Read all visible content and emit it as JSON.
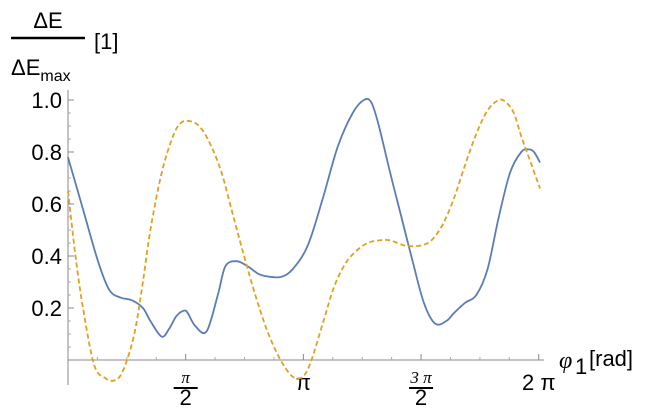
{
  "chart_data": {
    "type": "line",
    "title": "",
    "xlabel": {
      "symbol": "φ",
      "subscript": "1",
      "unit": "[rad]"
    },
    "ylabel": {
      "numerator": "ΔE",
      "denominator": "ΔE",
      "denominator_subscript": "max",
      "unit": "[1]"
    },
    "xlim": [
      0,
      6.3
    ],
    "ylim": [
      0,
      1.05
    ],
    "y_ticks": [
      {
        "value": 0.2,
        "label": "0.2"
      },
      {
        "value": 0.4,
        "label": "0.4"
      },
      {
        "value": 0.6,
        "label": "0.6"
      },
      {
        "value": 0.8,
        "label": "0.8"
      },
      {
        "value": 1.0,
        "label": "1.0"
      }
    ],
    "x_ticks": [
      {
        "value": 1.5708,
        "num": "π",
        "den": "2"
      },
      {
        "value": 3.1416,
        "label": "π"
      },
      {
        "value": 4.7124,
        "num": "3 π",
        "den": "2"
      },
      {
        "value": 6.2832,
        "label": "2 π"
      }
    ],
    "grid": false,
    "series": [
      {
        "color": "#5b7db5",
        "dash": "solid",
        "x": [
          0.0,
          0.2,
          0.4,
          0.55,
          0.7,
          0.85,
          1.0,
          1.1,
          1.25,
          1.35,
          1.45,
          1.55,
          1.6,
          1.7,
          1.85,
          2.0,
          2.1,
          2.25,
          2.4,
          2.55,
          2.7,
          2.85,
          3.0,
          3.2,
          3.4,
          3.6,
          3.8,
          3.95,
          4.05,
          4.15,
          4.3,
          4.45,
          4.6,
          4.75,
          4.9,
          5.05,
          5.15,
          5.3,
          5.45,
          5.6,
          5.75,
          5.9,
          6.05,
          6.15,
          6.22,
          6.3
        ],
        "y": [
          0.78,
          0.58,
          0.38,
          0.27,
          0.24,
          0.23,
          0.2,
          0.15,
          0.09,
          0.12,
          0.17,
          0.19,
          0.18,
          0.13,
          0.11,
          0.25,
          0.36,
          0.38,
          0.36,
          0.33,
          0.32,
          0.32,
          0.35,
          0.44,
          0.62,
          0.82,
          0.95,
          1.0,
          0.99,
          0.9,
          0.72,
          0.55,
          0.38,
          0.22,
          0.14,
          0.15,
          0.18,
          0.22,
          0.25,
          0.35,
          0.55,
          0.72,
          0.8,
          0.81,
          0.8,
          0.76
        ]
      },
      {
        "color": "#e0a020",
        "dash": "dashed",
        "x": [
          0.0,
          0.1,
          0.2,
          0.35,
          0.5,
          0.6,
          0.7,
          0.8,
          0.9,
          1.0,
          1.1,
          1.25,
          1.4,
          1.5,
          1.6,
          1.75,
          1.9,
          2.05,
          2.2,
          2.35,
          2.5,
          2.65,
          2.8,
          2.95,
          3.05,
          3.15,
          3.25,
          3.4,
          3.55,
          3.7,
          3.85,
          4.0,
          4.15,
          4.3,
          4.5,
          4.7,
          4.85,
          5.0,
          5.15,
          5.3,
          5.45,
          5.6,
          5.75,
          5.85,
          5.95,
          6.05,
          6.15,
          6.3
        ],
        "y": [
          0.65,
          0.4,
          0.2,
          -0.02,
          -0.07,
          -0.08,
          -0.06,
          0.01,
          0.12,
          0.3,
          0.5,
          0.72,
          0.86,
          0.91,
          0.92,
          0.9,
          0.83,
          0.72,
          0.56,
          0.4,
          0.25,
          0.12,
          0.02,
          -0.05,
          -0.07,
          -0.06,
          0.0,
          0.14,
          0.28,
          0.37,
          0.42,
          0.45,
          0.46,
          0.46,
          0.44,
          0.44,
          0.46,
          0.52,
          0.62,
          0.75,
          0.87,
          0.96,
          1.0,
          0.99,
          0.95,
          0.86,
          0.78,
          0.66
        ]
      }
    ]
  }
}
